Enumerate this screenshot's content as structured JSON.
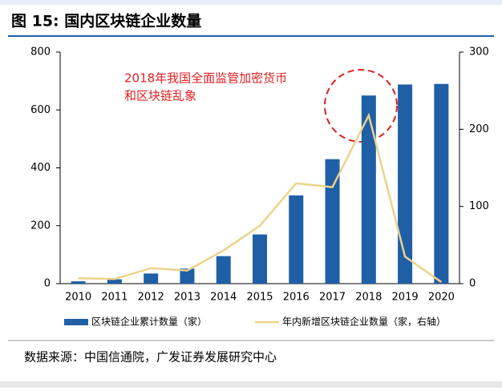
{
  "header": {
    "title": "图 15:  国内区块链企业数量"
  },
  "chart_data": {
    "type": "bar-line",
    "categories": [
      "2010",
      "2011",
      "2012",
      "2013",
      "2014",
      "2015",
      "2016",
      "2017",
      "2018",
      "2019",
      "2020"
    ],
    "series": [
      {
        "name": "区块链企业累计数量（家）",
        "type": "bar",
        "color": "#1f5fa6",
        "values": [
          8,
          15,
          35,
          52,
          95,
          170,
          305,
          430,
          650,
          688,
          690
        ]
      },
      {
        "name": "年内新增区块链企业数量（家，右轴）",
        "type": "line",
        "axis": "y2",
        "color": "#ecd38a",
        "values": [
          7,
          6,
          20,
          17,
          43,
          75,
          130,
          125,
          218,
          35,
          2
        ]
      }
    ],
    "ylim": [
      0,
      800
    ],
    "yticks": [
      0,
      200,
      400,
      600,
      800
    ],
    "y2lim": [
      0,
      300
    ],
    "y2ticks": [
      0,
      100,
      200,
      300
    ],
    "annotations": [
      "2018年我国全面监管加密货币",
      "和区块链乱象"
    ]
  },
  "footer": {
    "source": "数据来源：中国信通院，广发证券发展研究中心"
  }
}
